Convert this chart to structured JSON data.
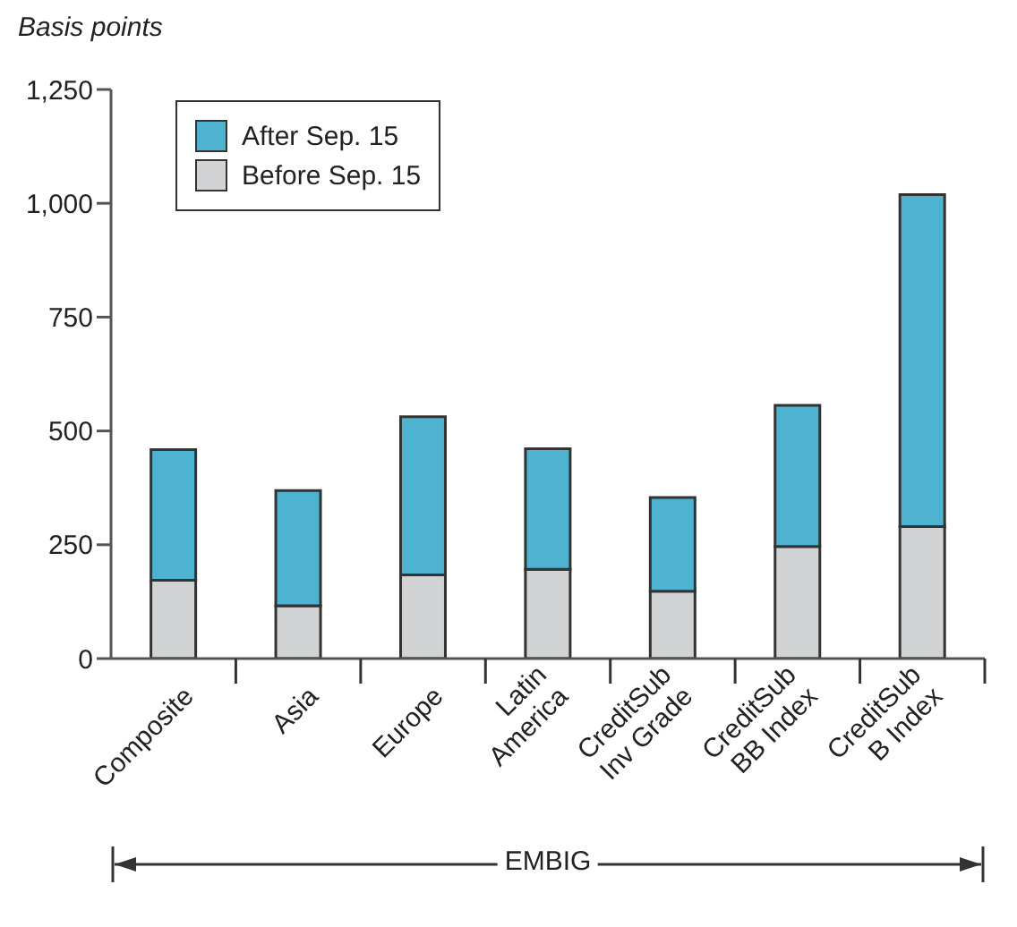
{
  "chart_data": {
    "type": "bar",
    "stacked": true,
    "ylabel": "Basis points",
    "categories": [
      "Composite",
      "Asia",
      "Europe",
      "Latin\nAmerica",
      "CreditSub\nInv Grade",
      "CreditSub\nBB Index",
      "CreditSub\nB Index"
    ],
    "series": [
      {
        "name": "Before Sep. 15",
        "color": "#d1d2d4",
        "values": [
          172,
          116,
          184,
          196,
          148,
          246,
          290
        ]
      },
      {
        "name": "After Sep. 15",
        "color": "#4db3d1",
        "values": [
          287,
          253,
          347,
          265,
          206,
          310,
          729
        ]
      }
    ],
    "ylim": [
      0,
      1250
    ],
    "yticks": [
      0,
      250,
      500,
      750,
      {
        "value": 1000,
        "label": "1,000"
      },
      {
        "value": 1250,
        "label": "1,250"
      }
    ],
    "grid": false,
    "legend": "top left",
    "annotations": [
      "EMBIG"
    ]
  }
}
